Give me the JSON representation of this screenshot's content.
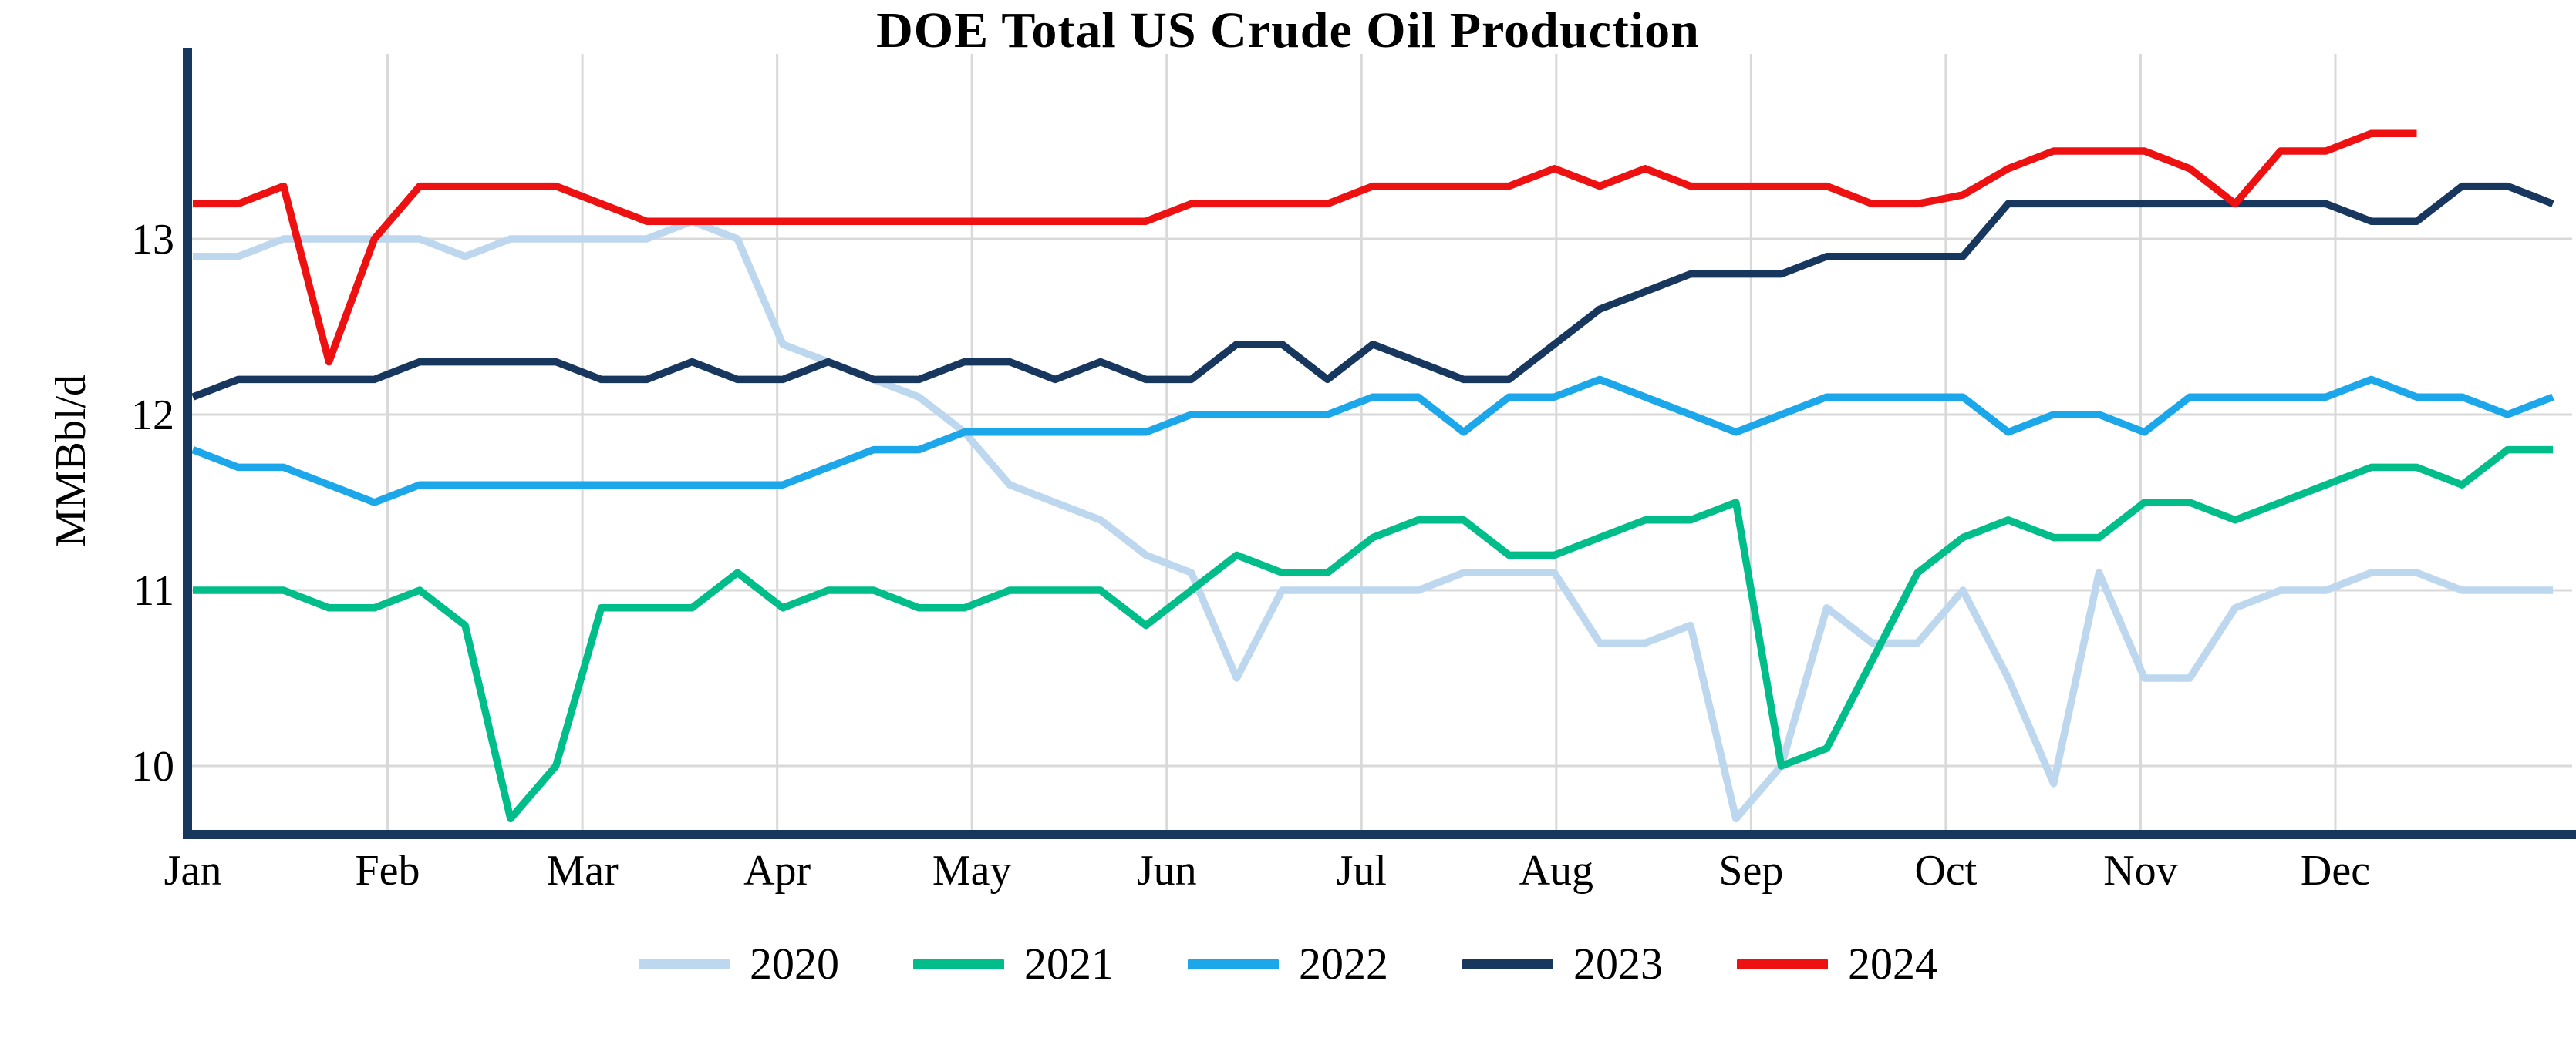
{
  "title": "DOE Total US Crude Oil Production",
  "chart_data": {
    "type": "line",
    "title": "DOE Total US Crude Oil Production",
    "xlabel": "",
    "ylabel": "MMBbl/d",
    "frequency": "weekly",
    "x_tick_labels": [
      "Jan",
      "Feb",
      "Mar",
      "Apr",
      "May",
      "Jun",
      "Jul",
      "Aug",
      "Sep",
      "Oct",
      "Nov",
      "Dec"
    ],
    "y_tick_labels": [
      "10",
      "11",
      "12",
      "13"
    ],
    "y_ticks": [
      10,
      11,
      12,
      13
    ],
    "ylim": [
      9.6,
      13.72
    ],
    "grid": true,
    "legend_position": "bottom",
    "series": [
      {
        "name": "2020",
        "color": "#bdd7ee",
        "values": [
          12.9,
          12.9,
          13.0,
          13.0,
          13.0,
          13.0,
          12.9,
          13.0,
          13.0,
          13.0,
          13.0,
          13.1,
          13.0,
          12.4,
          12.3,
          12.2,
          12.1,
          11.9,
          11.6,
          11.5,
          11.4,
          11.2,
          11.1,
          10.5,
          11.0,
          11.0,
          11.0,
          11.0,
          11.1,
          11.1,
          11.1,
          10.7,
          10.7,
          10.8,
          9.7,
          10.0,
          10.9,
          10.7,
          10.7,
          11.0,
          10.5,
          9.9,
          11.1,
          10.5,
          10.5,
          10.9,
          11.0,
          11.0,
          11.1,
          11.1,
          11.0,
          11.0,
          11.0
        ]
      },
      {
        "name": "2021",
        "color": "#00bd8a",
        "values": [
          11.0,
          11.0,
          11.0,
          10.9,
          10.9,
          11.0,
          10.8,
          9.7,
          10.0,
          10.9,
          10.9,
          10.9,
          11.1,
          10.9,
          11.0,
          11.0,
          10.9,
          10.9,
          11.0,
          11.0,
          11.0,
          10.8,
          11.0,
          11.2,
          11.1,
          11.1,
          11.3,
          11.4,
          11.4,
          11.2,
          11.2,
          11.3,
          11.4,
          11.4,
          11.5,
          10.0,
          10.1,
          10.6,
          11.1,
          11.3,
          11.4,
          11.3,
          11.3,
          11.5,
          11.5,
          11.4,
          11.5,
          11.6,
          11.7,
          11.7,
          11.6,
          11.8,
          11.8
        ]
      },
      {
        "name": "2022",
        "color": "#1ba7ea",
        "values": [
          11.8,
          11.7,
          11.7,
          11.6,
          11.5,
          11.6,
          11.6,
          11.6,
          11.6,
          11.6,
          11.6,
          11.6,
          11.6,
          11.6,
          11.7,
          11.8,
          11.8,
          11.9,
          11.9,
          11.9,
          11.9,
          11.9,
          12.0,
          12.0,
          12.0,
          12.0,
          12.1,
          12.1,
          11.9,
          12.1,
          12.1,
          12.2,
          12.1,
          12.0,
          11.9,
          12.0,
          12.1,
          12.1,
          12.1,
          12.1,
          11.9,
          12.0,
          12.0,
          11.9,
          12.1,
          12.1,
          12.1,
          12.1,
          12.2,
          12.1,
          12.1,
          12.0,
          12.1
        ]
      },
      {
        "name": "2023",
        "color": "#17375e",
        "values": [
          12.1,
          12.2,
          12.2,
          12.2,
          12.2,
          12.3,
          12.3,
          12.3,
          12.3,
          12.2,
          12.2,
          12.3,
          12.2,
          12.2,
          12.3,
          12.2,
          12.2,
          12.3,
          12.3,
          12.2,
          12.3,
          12.2,
          12.2,
          12.4,
          12.4,
          12.2,
          12.4,
          12.3,
          12.2,
          12.2,
          12.4,
          12.6,
          12.7,
          12.8,
          12.8,
          12.8,
          12.9,
          12.9,
          12.9,
          12.9,
          13.2,
          13.2,
          13.2,
          13.2,
          13.2,
          13.2,
          13.2,
          13.2,
          13.1,
          13.1,
          13.3,
          13.3,
          13.2
        ]
      },
      {
        "name": "2024",
        "color": "#ee1111",
        "values": [
          13.2,
          13.2,
          13.3,
          12.3,
          13.0,
          13.3,
          13.3,
          13.3,
          13.3,
          13.2,
          13.1,
          13.1,
          13.1,
          13.1,
          13.1,
          13.1,
          13.1,
          13.1,
          13.1,
          13.1,
          13.1,
          13.1,
          13.2,
          13.2,
          13.2,
          13.2,
          13.3,
          13.3,
          13.3,
          13.3,
          13.4,
          13.3,
          13.4,
          13.3,
          13.3,
          13.3,
          13.3,
          13.2,
          13.2,
          13.25,
          13.4,
          13.5,
          13.5,
          13.5,
          13.4,
          13.2,
          13.5,
          13.5,
          13.6,
          13.6
        ]
      }
    ]
  },
  "colors": {
    "axis": "#17375e",
    "grid": "#d9d9d9",
    "background": "#ffffff",
    "text": "#000000"
  }
}
